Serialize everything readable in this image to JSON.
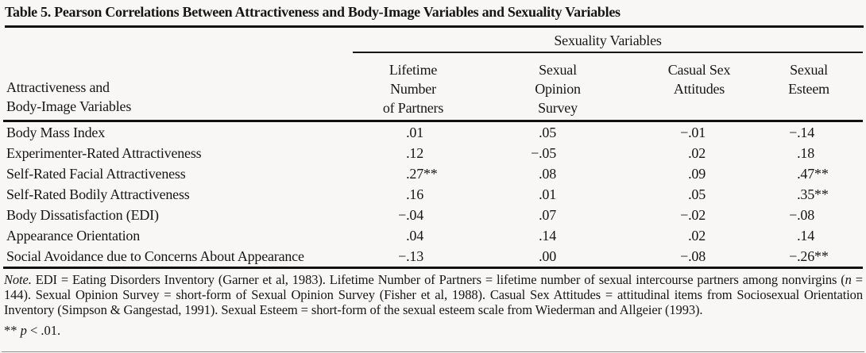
{
  "title": "Table 5. Pearson Correlations Between Attractiveness and Body-Image Variables and Sexuality Variables",
  "colors": {
    "paper": "#f8f7f5",
    "ink": "#161616"
  },
  "table": {
    "spanner": "Sexuality Variables",
    "stub_header": [
      "Attractiveness and",
      "Body-Image Variables"
    ],
    "columns": [
      {
        "lines": [
          "Lifetime",
          "Number",
          "of Partners"
        ]
      },
      {
        "lines": [
          "Sexual",
          "Opinion",
          "Survey"
        ]
      },
      {
        "lines": [
          "Casual Sex",
          "Attitudes"
        ]
      },
      {
        "lines": [
          "Sexual",
          "Esteem"
        ]
      }
    ],
    "rows": [
      {
        "label": "Body Mass Index",
        "nums": [
          ".01",
          ".05",
          "−.01",
          "−.14"
        ],
        "stars": [
          "",
          "",
          "",
          ""
        ]
      },
      {
        "label": "Experimenter-Rated Attractiveness",
        "nums": [
          ".12",
          "−.05",
          ".02",
          ".18"
        ],
        "stars": [
          "",
          "",
          "",
          ""
        ]
      },
      {
        "label": "Self-Rated Facial Attractiveness",
        "nums": [
          ".27",
          ".08",
          ".09",
          ".47"
        ],
        "stars": [
          "**",
          "",
          "",
          "**"
        ]
      },
      {
        "label": "Self-Rated Bodily Attractiveness",
        "nums": [
          ".16",
          ".01",
          ".05",
          ".35"
        ],
        "stars": [
          "",
          "",
          "",
          "**"
        ]
      },
      {
        "label": "Body Dissatisfaction (EDI)",
        "nums": [
          "−.04",
          ".07",
          "−.02",
          "−.08"
        ],
        "stars": [
          "",
          "",
          "",
          ""
        ]
      },
      {
        "label": "Appearance Orientation",
        "nums": [
          ".04",
          ".14",
          ".02",
          ".14"
        ],
        "stars": [
          "",
          "",
          "",
          ""
        ]
      },
      {
        "label": "Social Avoidance due to Concerns About Appearance",
        "nums": [
          "−.13",
          ".00",
          "−.08",
          "−.26"
        ],
        "stars": [
          "",
          "",
          "",
          "**"
        ]
      }
    ]
  },
  "note": {
    "label": "Note.",
    "seg1": " EDI = Eating Disorders Inventory (Garner et al, 1983). Lifetime Number of Partners = lifetime number of sexual intercourse partners among nonvirgins (",
    "n_italic": "n",
    "seg2": " = 144). Sexual Opinion Survey = short-form of Sexual Opinion Survey (Fisher et al, 1988). Casual Sex Attitudes = attitudinal items from Sociosexual Orientation Inventory (Simpson & Gangestad, 1991). Sexual Esteem = short-form of the sexual esteem scale from Wiederman and Allgeier (1993)."
  },
  "footnote": {
    "stars": "** ",
    "p": "p",
    "rest": " < .01."
  }
}
